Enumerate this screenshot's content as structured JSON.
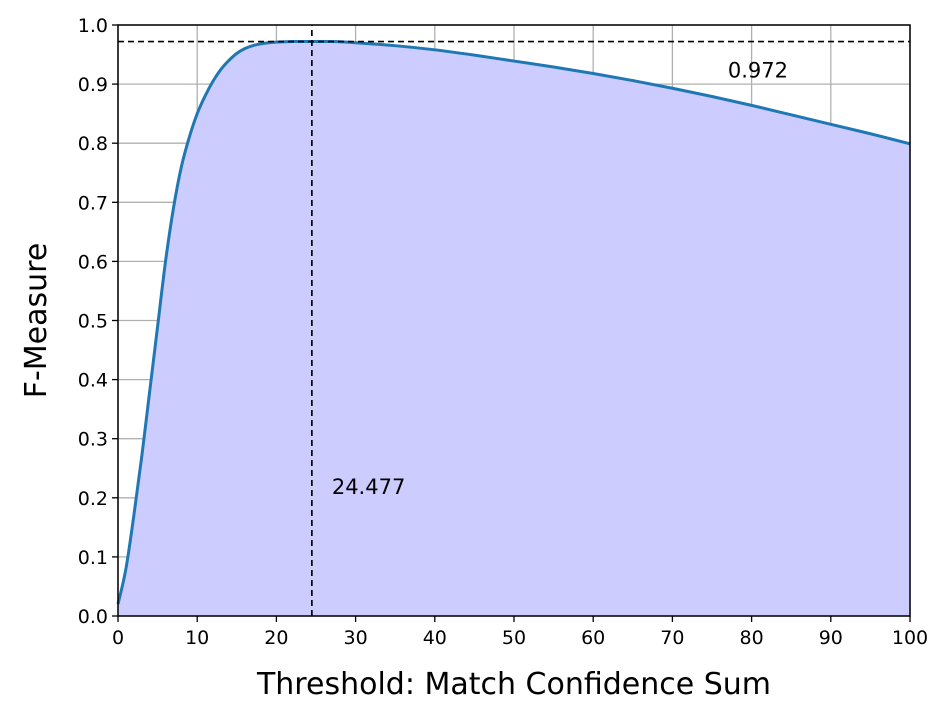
{
  "chart_data": {
    "type": "area",
    "xlabel": "Threshold: Match Confidence Sum",
    "ylabel": "F-Measure",
    "xlim": [
      0,
      100
    ],
    "ylim": [
      0,
      1.0
    ],
    "x_ticks": [
      0,
      10,
      20,
      30,
      40,
      50,
      60,
      70,
      80,
      90,
      100
    ],
    "x_tick_labels": [
      "0",
      "10",
      "20",
      "30",
      "40",
      "50",
      "60",
      "70",
      "80",
      "90",
      "100"
    ],
    "y_ticks": [
      0.0,
      0.1,
      0.2,
      0.3,
      0.4,
      0.5,
      0.6,
      0.7,
      0.8,
      0.9,
      1.0
    ],
    "y_tick_labels": [
      "0.0",
      "0.1",
      "0.2",
      "0.3",
      "0.4",
      "0.5",
      "0.6",
      "0.7",
      "0.8",
      "0.9",
      "1.0"
    ],
    "grid": true,
    "line_color": "#1f77b4",
    "fill_color": "#ccccff",
    "x": [
      0,
      1,
      2,
      3,
      4,
      5,
      6,
      7,
      8,
      9,
      10,
      11,
      12,
      13,
      14,
      15,
      16,
      17,
      18,
      19,
      20,
      22,
      24.477,
      27,
      30,
      35,
      40,
      45,
      50,
      55,
      60,
      65,
      70,
      75,
      80,
      85,
      90,
      95,
      100
    ],
    "y": [
      0.02,
      0.08,
      0.17,
      0.27,
      0.38,
      0.49,
      0.6,
      0.69,
      0.76,
      0.81,
      0.85,
      0.88,
      0.905,
      0.925,
      0.94,
      0.952,
      0.96,
      0.965,
      0.968,
      0.97,
      0.971,
      0.972,
      0.972,
      0.972,
      0.97,
      0.965,
      0.958,
      0.949,
      0.939,
      0.929,
      0.918,
      0.906,
      0.893,
      0.879,
      0.864,
      0.848,
      0.832,
      0.816,
      0.799
    ],
    "annotations": {
      "max_x": 24.477,
      "max_y": 0.972,
      "max_x_label": "24.477",
      "max_y_label": "0.972",
      "max_x_label_at": [
        27,
        0.22
      ],
      "max_y_label_at": [
        77,
        0.925
      ]
    }
  }
}
